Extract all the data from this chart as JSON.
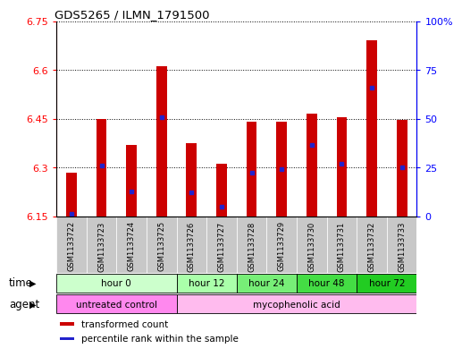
{
  "title": "GDS5265 / ILMN_1791500",
  "samples": [
    "GSM1133722",
    "GSM1133723",
    "GSM1133724",
    "GSM1133725",
    "GSM1133726",
    "GSM1133727",
    "GSM1133728",
    "GSM1133729",
    "GSM1133730",
    "GSM1133731",
    "GSM1133732",
    "GSM1133733"
  ],
  "bar_tops": [
    6.285,
    6.45,
    6.37,
    6.61,
    6.375,
    6.31,
    6.44,
    6.44,
    6.465,
    6.455,
    6.69,
    6.445
  ],
  "blue_markers": [
    6.158,
    6.305,
    6.225,
    6.455,
    6.222,
    6.178,
    6.284,
    6.295,
    6.37,
    6.31,
    6.545,
    6.3
  ],
  "bar_bottom": 6.15,
  "ylim": [
    6.15,
    6.75
  ],
  "yticks_left": [
    6.15,
    6.3,
    6.45,
    6.6,
    6.75
  ],
  "yticks_right_pct": [
    0,
    25,
    50,
    75,
    100
  ],
  "ytick_labels_right": [
    "0",
    "25",
    "50",
    "75",
    "100%"
  ],
  "bar_color": "#cc0000",
  "blue_color": "#2222cc",
  "time_groups": [
    {
      "label": "hour 0",
      "start": 0,
      "end": 3,
      "color": "#ccffcc"
    },
    {
      "label": "hour 12",
      "start": 4,
      "end": 5,
      "color": "#aaffaa"
    },
    {
      "label": "hour 24",
      "start": 6,
      "end": 7,
      "color": "#77ee77"
    },
    {
      "label": "hour 48",
      "start": 8,
      "end": 9,
      "color": "#44dd44"
    },
    {
      "label": "hour 72",
      "start": 10,
      "end": 11,
      "color": "#22cc22"
    }
  ],
  "agent_groups": [
    {
      "label": "untreated control",
      "start": 0,
      "end": 3,
      "color": "#ff88ee"
    },
    {
      "label": "mycophenolic acid",
      "start": 4,
      "end": 11,
      "color": "#ffbbee"
    }
  ],
  "sample_bg_color": "#c8c8c8",
  "legend_items": [
    {
      "color": "#cc0000",
      "label": "transformed count"
    },
    {
      "color": "#2222cc",
      "label": "percentile rank within the sample"
    }
  ]
}
